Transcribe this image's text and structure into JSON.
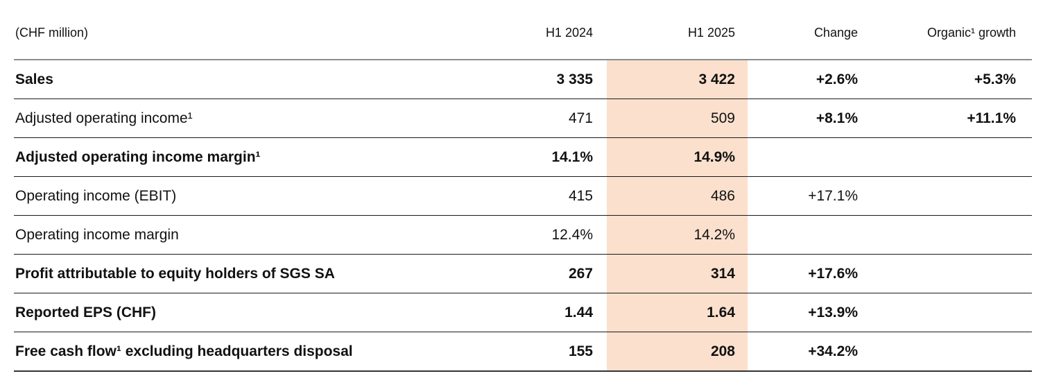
{
  "page": {
    "background_color": "#ffffff",
    "text_color": "#111111"
  },
  "table": {
    "unit_label": "(CHF million)",
    "columns": [
      "H1 2024",
      "H1 2025",
      "Change",
      "Organic¹ growth"
    ],
    "highlight": {
      "column": "H1 2025",
      "color": "#fae0cd"
    },
    "rules": {
      "header_rule_color": "#8c8c8c",
      "row_rule_color": "#1a1a1a",
      "bottom_rule_color": "#333333"
    },
    "rows": [
      {
        "label": "Sales",
        "h1_2024": "3 335",
        "h1_2025": "3 422",
        "change": "+2.6%",
        "organic": "+5.3%"
      },
      {
        "label": "Adjusted operating income¹",
        "h1_2024": "471",
        "h1_2025": "509",
        "change": "+8.1%",
        "organic": "+11.1%"
      },
      {
        "label": "Adjusted operating income margin¹",
        "h1_2024": "14.1%",
        "h1_2025": "14.9%",
        "change": "",
        "organic": ""
      },
      {
        "label": "Operating income (EBIT)",
        "h1_2024": "415",
        "h1_2025": "486",
        "change": "+17.1%",
        "organic": ""
      },
      {
        "label": "Operating income margin",
        "h1_2024": "12.4%",
        "h1_2025": "14.2%",
        "change": "",
        "organic": ""
      },
      {
        "label": "Profit attributable to equity holders of SGS SA",
        "h1_2024": "267",
        "h1_2025": "314",
        "change": "+17.6%",
        "organic": ""
      },
      {
        "label": "Reported EPS (CHF)",
        "h1_2024": "1.44",
        "h1_2025": "1.64",
        "change": "+13.9%",
        "organic": ""
      },
      {
        "label": "Free cash flow¹ excluding headquarters disposal",
        "h1_2024": "155",
        "h1_2025": "208",
        "change": "+34.2%",
        "organic": ""
      }
    ]
  }
}
